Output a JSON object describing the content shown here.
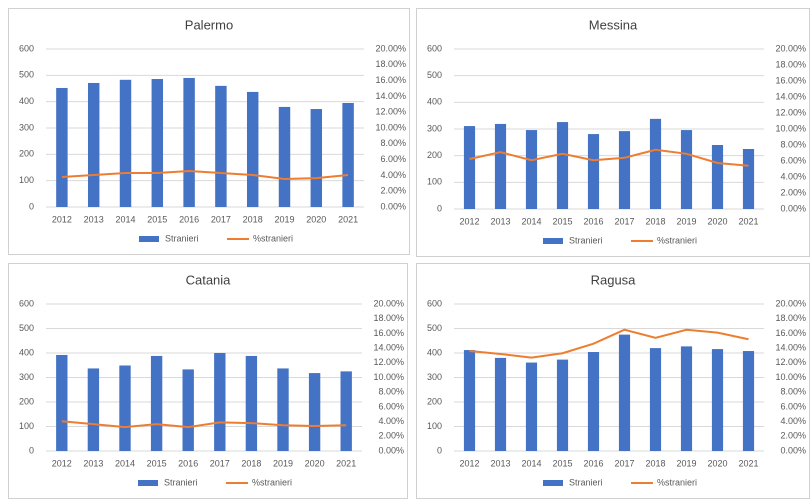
{
  "chart_data": [
    {
      "type": "combo",
      "title": "Palermo",
      "categories": [
        "2012",
        "2013",
        "2014",
        "2015",
        "2016",
        "2017",
        "2018",
        "2019",
        "2020",
        "2021"
      ],
      "series": [
        {
          "name": "Stranieri",
          "type": "bar",
          "color": "#4472c4",
          "values": [
            452,
            471,
            483,
            486,
            490,
            460,
            437,
            380,
            372,
            395
          ]
        },
        {
          "name": "%stranieri",
          "type": "line",
          "axis": "y2",
          "color": "#ed7d31",
          "values": [
            3.8,
            4.05,
            4.3,
            4.3,
            4.55,
            4.3,
            4.05,
            3.55,
            3.65,
            4.05
          ]
        }
      ],
      "ylim": [
        0,
        600
      ],
      "yticks": [
        0,
        100,
        200,
        300,
        400,
        500,
        600
      ],
      "y2lim": [
        0,
        20
      ],
      "y2ticks": [
        {
          "value": 0,
          "label": "0.00%"
        },
        {
          "value": 2,
          "label": "2.00%"
        },
        {
          "value": 4,
          "label": "4.00%"
        },
        {
          "value": 6,
          "label": "6.00%"
        },
        {
          "value": 8,
          "label": "8.00%"
        },
        {
          "value": 10,
          "label": "10.00%"
        },
        {
          "value": 12,
          "label": "12.00%"
        },
        {
          "value": 14,
          "label": "14.00%"
        },
        {
          "value": 16,
          "label": "16.00%"
        },
        {
          "value": 18,
          "label": "18.00%"
        },
        {
          "value": 20,
          "label": "20.00%"
        }
      ],
      "legend": "bottom"
    },
    {
      "type": "combo",
      "title": "Messina",
      "categories": [
        "2012",
        "2013",
        "2014",
        "2015",
        "2016",
        "2017",
        "2018",
        "2019",
        "2020",
        "2021"
      ],
      "series": [
        {
          "name": "Stranieri",
          "type": "bar",
          "color": "#4472c4",
          "values": [
            311,
            319,
            296,
            326,
            281,
            292,
            338,
            296,
            240,
            225
          ]
        },
        {
          "name": "%stranieri",
          "type": "line",
          "axis": "y2",
          "color": "#ed7d31",
          "values": [
            6.25,
            7.1,
            6.1,
            6.9,
            6.1,
            6.4,
            7.4,
            6.9,
            5.75,
            5.4
          ]
        }
      ],
      "ylim": [
        0,
        600
      ],
      "yticks": [
        0,
        100,
        200,
        300,
        400,
        500,
        600
      ],
      "y2lim": [
        0,
        20
      ],
      "y2ticks": [
        {
          "value": 0,
          "label": "0.00%"
        },
        {
          "value": 2,
          "label": "2.00%"
        },
        {
          "value": 4,
          "label": "4.00%"
        },
        {
          "value": 6,
          "label": "6.00%"
        },
        {
          "value": 8,
          "label": "8.00%"
        },
        {
          "value": 10,
          "label": "10.00%"
        },
        {
          "value": 12,
          "label": "12.00%"
        },
        {
          "value": 14,
          "label": "14.00%"
        },
        {
          "value": 16,
          "label": "16.00%"
        },
        {
          "value": 18,
          "label": "18.00%"
        },
        {
          "value": 20,
          "label": "20.00%"
        }
      ],
      "legend": "bottom"
    },
    {
      "type": "combo",
      "title": "Catania",
      "categories": [
        "2012",
        "2013",
        "2014",
        "2015",
        "2016",
        "2017",
        "2018",
        "2019",
        "2020",
        "2021"
      ],
      "series": [
        {
          "name": "Stranieri",
          "type": "bar",
          "color": "#4472c4",
          "values": [
            392,
            337,
            349,
            388,
            333,
            400,
            388,
            337,
            318,
            325
          ]
        },
        {
          "name": "%stranieri",
          "type": "line",
          "axis": "y2",
          "color": "#ed7d31",
          "values": [
            4.05,
            3.65,
            3.25,
            3.65,
            3.25,
            3.9,
            3.8,
            3.5,
            3.4,
            3.5
          ]
        }
      ],
      "ylim": [
        0,
        600
      ],
      "yticks": [
        0,
        100,
        200,
        300,
        400,
        500,
        600
      ],
      "y2lim": [
        0,
        20
      ],
      "y2ticks": [
        {
          "value": 0,
          "label": "0.00%"
        },
        {
          "value": 2,
          "label": "2.00%"
        },
        {
          "value": 4,
          "label": "4.00%"
        },
        {
          "value": 6,
          "label": "6.00%"
        },
        {
          "value": 8,
          "label": "8.00%"
        },
        {
          "value": 10,
          "label": "10.00%"
        },
        {
          "value": 12,
          "label": "12.00%"
        },
        {
          "value": 14,
          "label": "14.00%"
        },
        {
          "value": 16,
          "label": "16.00%"
        },
        {
          "value": 18,
          "label": "18.00%"
        },
        {
          "value": 20,
          "label": "20.00%"
        }
      ],
      "legend": "bottom"
    },
    {
      "type": "combo",
      "title": "Ragusa",
      "categories": [
        "2012",
        "2013",
        "2014",
        "2015",
        "2016",
        "2017",
        "2018",
        "2019",
        "2020",
        "2021"
      ],
      "series": [
        {
          "name": "Stranieri",
          "type": "bar",
          "color": "#4472c4",
          "values": [
            412,
            380,
            361,
            373,
            404,
            475,
            420,
            427,
            416,
            408
          ]
        },
        {
          "name": "%stranieri",
          "type": "line",
          "axis": "y2",
          "color": "#ed7d31",
          "values": [
            13.6,
            13.2,
            12.7,
            13.3,
            14.6,
            16.5,
            15.4,
            16.5,
            16.1,
            15.2
          ]
        }
      ],
      "ylim": [
        0,
        600
      ],
      "yticks": [
        0,
        100,
        200,
        300,
        400,
        500,
        600
      ],
      "y2lim": [
        0,
        20
      ],
      "y2ticks": [
        {
          "value": 0,
          "label": "0.00%"
        },
        {
          "value": 2,
          "label": "2.00%"
        },
        {
          "value": 4,
          "label": "4.00%"
        },
        {
          "value": 6,
          "label": "6.00%"
        },
        {
          "value": 8,
          "label": "8.00%"
        },
        {
          "value": 10,
          "label": "10.00%"
        },
        {
          "value": 12,
          "label": "12.00%"
        },
        {
          "value": 14,
          "label": "14.00%"
        },
        {
          "value": 16,
          "label": "16.00%"
        },
        {
          "value": 18,
          "label": "18.00%"
        },
        {
          "value": 20,
          "label": "20.00%"
        }
      ],
      "legend": "bottom"
    }
  ]
}
